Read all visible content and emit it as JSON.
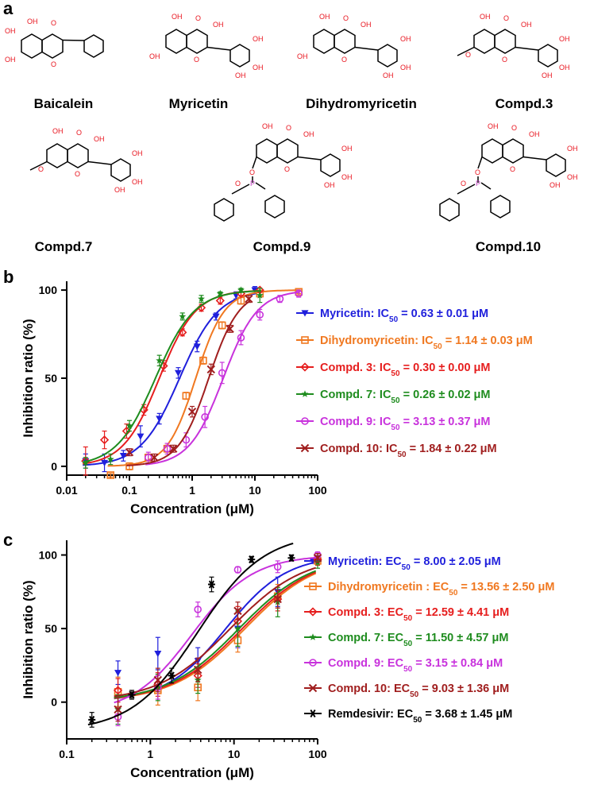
{
  "panels": {
    "a": "a",
    "b": "b",
    "c": "c"
  },
  "compounds": [
    {
      "name": "Baicalein"
    },
    {
      "name": "Myricetin"
    },
    {
      "name": "Dihydromyricetin"
    },
    {
      "name": "Compd.3"
    },
    {
      "name": "Compd.7"
    },
    {
      "name": "Compd.9"
    },
    {
      "name": "Compd.10"
    }
  ],
  "atoms": {
    "OH": "OH",
    "O": "O",
    "P": "P",
    "H": "H"
  },
  "chart_data": [
    {
      "type": "line",
      "panel": "b",
      "xscale": "log",
      "xlabel": "Concentration (μM)",
      "ylabel": "Inhibition ratio (%)",
      "xlim": [
        0.01,
        100
      ],
      "ylim": [
        -5,
        105
      ],
      "xticks": [
        "0.01",
        "0.1",
        "1",
        "10",
        "100"
      ],
      "yticks": [
        "0",
        "50",
        "100"
      ],
      "legend_position": "right",
      "series": [
        {
          "name": "Myricetin",
          "label_prefix": "Myricetin: IC",
          "sub": "50",
          "label_value": " = 0.63 ± 0.01 μM",
          "color": "#1f1fdc",
          "marker": "tri_down",
          "ec50": 0.63,
          "hill": 1.4,
          "bottom": 0,
          "top": 100,
          "x": [
            0.02,
            0.04,
            0.08,
            0.15,
            0.3,
            0.6,
            1.2,
            2.4,
            5,
            10
          ],
          "y": [
            3,
            2,
            6,
            17,
            27,
            53,
            68,
            85,
            97,
            100
          ],
          "err": [
            4,
            5,
            3,
            6,
            3,
            3,
            3,
            2,
            2,
            2
          ]
        },
        {
          "name": "Dihydromyricetin",
          "label_prefix": "Dihydromyricetin: IC",
          "sub": "50",
          "label_value": " = 1.14 ± 0.03 μM",
          "color": "#f07820",
          "marker": "square",
          "ec50": 1.14,
          "hill": 1.9,
          "bottom": 0,
          "top": 100,
          "x": [
            0.05,
            0.1,
            0.2,
            0.4,
            0.8,
            1.5,
            3,
            6,
            12,
            50
          ],
          "y": [
            -5,
            0,
            5,
            10,
            40,
            60,
            80,
            94,
            98,
            99
          ],
          "err": [
            1,
            2,
            2,
            2,
            2,
            2,
            2,
            2,
            2,
            1
          ]
        },
        {
          "name": "Compd. 3",
          "label_prefix": "Compd. 3: IC",
          "sub": "50",
          "label_value": " = 0.30 ± 0.00 μM",
          "color": "#e61e1e",
          "marker": "diamond",
          "ec50": 0.3,
          "hill": 1.5,
          "bottom": 0,
          "top": 100,
          "x": [
            0.02,
            0.04,
            0.09,
            0.17,
            0.35,
            0.7,
            1.4,
            2.8,
            6,
            12
          ],
          "y": [
            3,
            15,
            20,
            32,
            57,
            76,
            90,
            94,
            98,
            100
          ],
          "err": [
            8,
            5,
            4,
            3,
            3,
            2,
            2,
            2,
            1,
            1
          ]
        },
        {
          "name": "Compd. 7",
          "label_prefix": "Compd. 7: IC",
          "sub": "50",
          "label_value": " = 0.26 ± 0.02 μM",
          "color": "#1e8c1e",
          "marker": "star",
          "ec50": 0.26,
          "hill": 1.4,
          "bottom": 0,
          "top": 100,
          "x": [
            0.02,
            0.05,
            0.1,
            0.3,
            0.7,
            1.4,
            2.8,
            6,
            12
          ],
          "y": [
            2,
            4,
            23,
            60,
            85,
            95,
            98,
            100,
            97
          ],
          "err": [
            3,
            3,
            3,
            3,
            2,
            2,
            1,
            1,
            4
          ]
        },
        {
          "name": "Compd. 9",
          "label_prefix": "Compd. 9: IC",
          "sub": "50",
          "label_value": " = 3.13 ± 0.37 μM",
          "color": "#c832dc",
          "marker": "circle",
          "ec50": 3.13,
          "hill": 1.6,
          "bottom": 0,
          "top": 100,
          "x": [
            0.2,
            0.4,
            0.8,
            1.6,
            3,
            6,
            12,
            25,
            50
          ],
          "y": [
            5,
            10,
            15,
            28,
            53,
            73,
            86,
            95,
            98
          ],
          "err": [
            3,
            3,
            4,
            6,
            6,
            4,
            3,
            2,
            2
          ]
        },
        {
          "name": "Compd. 10",
          "label_prefix": "Compd. 10: IC",
          "sub": "50",
          "label_value": " = 1.84 ± 0.22 μM",
          "color": "#a01e1e",
          "marker": "x",
          "ec50": 1.84,
          "hill": 1.8,
          "bottom": 0,
          "top": 100,
          "x": [
            0.1,
            0.25,
            0.5,
            1,
            2,
            4,
            8
          ],
          "y": [
            8,
            5,
            10,
            31,
            55,
            78,
            95
          ],
          "err": [
            2,
            2,
            2,
            3,
            3,
            2,
            2
          ]
        }
      ]
    },
    {
      "type": "line",
      "panel": "c",
      "xscale": "log",
      "xlabel": "Concentration (μM)",
      "ylabel": "Inhibition ratio (%)",
      "xlim": [
        0.1,
        100
      ],
      "ylim": [
        -25,
        110
      ],
      "xticks": [
        "0.1",
        "1",
        "10",
        "100"
      ],
      "yticks": [
        "0",
        "50",
        "100"
      ],
      "legend_position": "right",
      "series": [
        {
          "name": "Myricetin",
          "label_prefix": "Myricetin: EC",
          "sub": "50",
          "label_value": " = 8.00 ± 2.05 μM",
          "color": "#1f1fdc",
          "marker": "tri_down",
          "ec50": 8.0,
          "hill": 1.2,
          "bottom": 0,
          "top": 100,
          "baseline_blend": 20,
          "x": [
            0.41,
            1.23,
            3.7,
            11.1,
            33.3,
            100
          ],
          "y": [
            20,
            33,
            28,
            50,
            75,
            98
          ],
          "err": [
            8,
            11,
            9,
            13,
            10,
            4
          ]
        },
        {
          "name": "Dihydromyricetin",
          "label_prefix": "Dihydromyricetin : EC",
          "sub": "50",
          "label_value": " = 13.56 ± 2.50 μM",
          "color": "#f07820",
          "marker": "square",
          "ec50": 13.56,
          "hill": 1.0,
          "bottom": 0,
          "top": 100,
          "x": [
            0.41,
            1.23,
            3.7,
            11.1,
            33.3,
            100
          ],
          "y": [
            7,
            8,
            10,
            42,
            72,
            96
          ],
          "err": [
            10,
            10,
            9,
            8,
            8,
            3
          ]
        },
        {
          "name": "Compd. 3",
          "label_prefix": "Compd. 3: EC",
          "sub": "50",
          "label_value": " = 12.59 ± 4.41 μM",
          "color": "#e61e1e",
          "marker": "diamond",
          "ec50": 12.59,
          "hill": 1.0,
          "bottom": 0,
          "top": 100,
          "x": [
            0.41,
            1.23,
            3.7,
            11.1,
            33.3,
            100
          ],
          "y": [
            8,
            12,
            18,
            55,
            70,
            97
          ],
          "err": [
            8,
            8,
            8,
            10,
            8,
            4
          ]
        },
        {
          "name": "Compd. 7",
          "label_prefix": "Compd. 7: EC",
          "sub": "50",
          "label_value": " = 11.50 ± 4.57 μM",
          "color": "#1e8c1e",
          "marker": "star",
          "ec50": 11.5,
          "hill": 1.0,
          "bottom": 0,
          "top": 100,
          "x": [
            0.41,
            1.23,
            3.7,
            11.1,
            33.3,
            100
          ],
          "y": [
            -5,
            10,
            15,
            50,
            68,
            95
          ],
          "err": [
            10,
            9,
            9,
            12,
            10,
            4
          ]
        },
        {
          "name": "Compd. 9",
          "label_prefix": "Compd. 9: EC",
          "sub": "50",
          "label_value": " = 3.15 ± 0.84 μM",
          "color": "#c832dc",
          "marker": "circle",
          "ec50": 3.15,
          "hill": 1.2,
          "bottom": -8,
          "top": 100,
          "x": [
            0.41,
            1.23,
            3.7,
            11.1,
            33.3,
            100
          ],
          "y": [
            -10,
            10,
            63,
            90,
            92,
            100
          ],
          "err": [
            6,
            8,
            5,
            2,
            4,
            2
          ]
        },
        {
          "name": "Compd. 10",
          "label_prefix": "Compd. 10: EC",
          "sub": "50",
          "label_value": " = 9.03 ± 1.36 μM",
          "color": "#a01e1e",
          "marker": "x",
          "ec50": 9.03,
          "hill": 1.0,
          "bottom": 0,
          "top": 100,
          "x": [
            0.41,
            1.23,
            3.7,
            11.1,
            33.3,
            100
          ],
          "y": [
            -5,
            15,
            22,
            62,
            70,
            98
          ],
          "err": [
            8,
            8,
            8,
            6,
            6,
            3
          ]
        },
        {
          "name": "Remdesivir",
          "label_prefix": "Remdesivir: EC",
          "sub": "50",
          "label_value": " = 3.68 ± 1.45 μM",
          "color": "#000000",
          "marker": "asterisk",
          "ec50": 3.68,
          "hill": 1.1,
          "bottom": -20,
          "top": 115,
          "x": [
            0.2,
            0.6,
            1.8,
            5.4,
            16.2,
            48.6
          ],
          "y": [
            -12,
            5,
            18,
            80,
            97,
            98
          ],
          "err": [
            5,
            3,
            5,
            5,
            2,
            2
          ]
        }
      ]
    }
  ]
}
